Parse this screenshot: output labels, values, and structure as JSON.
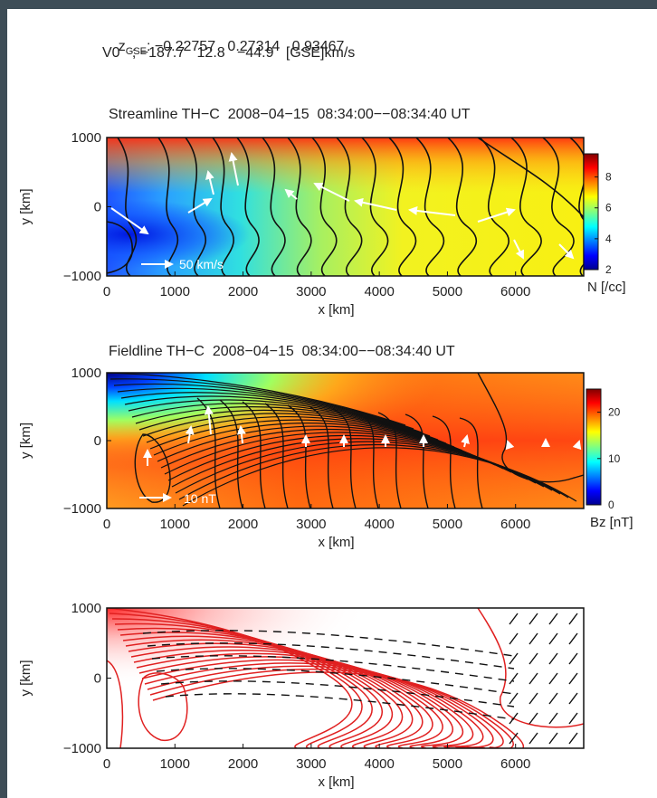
{
  "header": {
    "z_label": "z",
    "z_sub": "GSE",
    "z_values": ": −0.22757   0.27314   0.93467",
    "v0_line": "V0   ; −187.7   12.8   −44.9   [GSE]km/s"
  },
  "chart_data": [
    {
      "type": "heatmap",
      "title": "Streamline TH−C  2008−04−15  08:34:00−−08:34:40 UT",
      "xlabel": "x [km]",
      "ylabel": "y [km]",
      "xlim": [
        0,
        7000
      ],
      "ylim": [
        -1000,
        1000
      ],
      "xticks": [
        0,
        1000,
        2000,
        3000,
        4000,
        5000,
        6000
      ],
      "yticks": [
        -1000,
        0,
        1000
      ],
      "colorbar": {
        "label": "N [/cc]",
        "min": 2,
        "max": 9.5,
        "ticks": [
          2,
          4,
          6,
          8
        ],
        "colormap": "jet"
      },
      "overlay": "black streamlines with white velocity arrows",
      "annotations": [
        "50 km/s"
      ]
    },
    {
      "type": "heatmap",
      "title": "Fieldline TH−C  2008−04−15  08:34:00−−08:34:40 UT",
      "xlabel": "x [km]",
      "ylabel": "y [km]",
      "xlim": [
        0,
        7000
      ],
      "ylim": [
        -1000,
        1000
      ],
      "xticks": [
        0,
        1000,
        2000,
        3000,
        4000,
        5000,
        6000
      ],
      "yticks": [
        -1000,
        0,
        1000
      ],
      "colorbar": {
        "label": "Bz [nT]",
        "min": 0,
        "max": 25,
        "ticks": [
          0,
          10,
          20
        ],
        "colormap": "jet"
      },
      "overlay": "black field lines with white magnetic field arrows",
      "annotations": [
        "10 nT"
      ]
    },
    {
      "type": "line",
      "xlabel": "x [km]",
      "ylabel": "y [km]",
      "xlim": [
        0,
        7000
      ],
      "ylim": [
        -1000,
        1000
      ],
      "xticks": [
        0,
        1000,
        2000,
        3000,
        4000,
        5000,
        6000
      ],
      "yticks": [
        -1000,
        0,
        1000
      ],
      "overlay": "red solid contours and black dashed contours"
    }
  ],
  "colors": {
    "frame": "#3e4d57",
    "contour_red": "#e02020",
    "contour_black": "#111111",
    "arrow": "#ffffff"
  }
}
